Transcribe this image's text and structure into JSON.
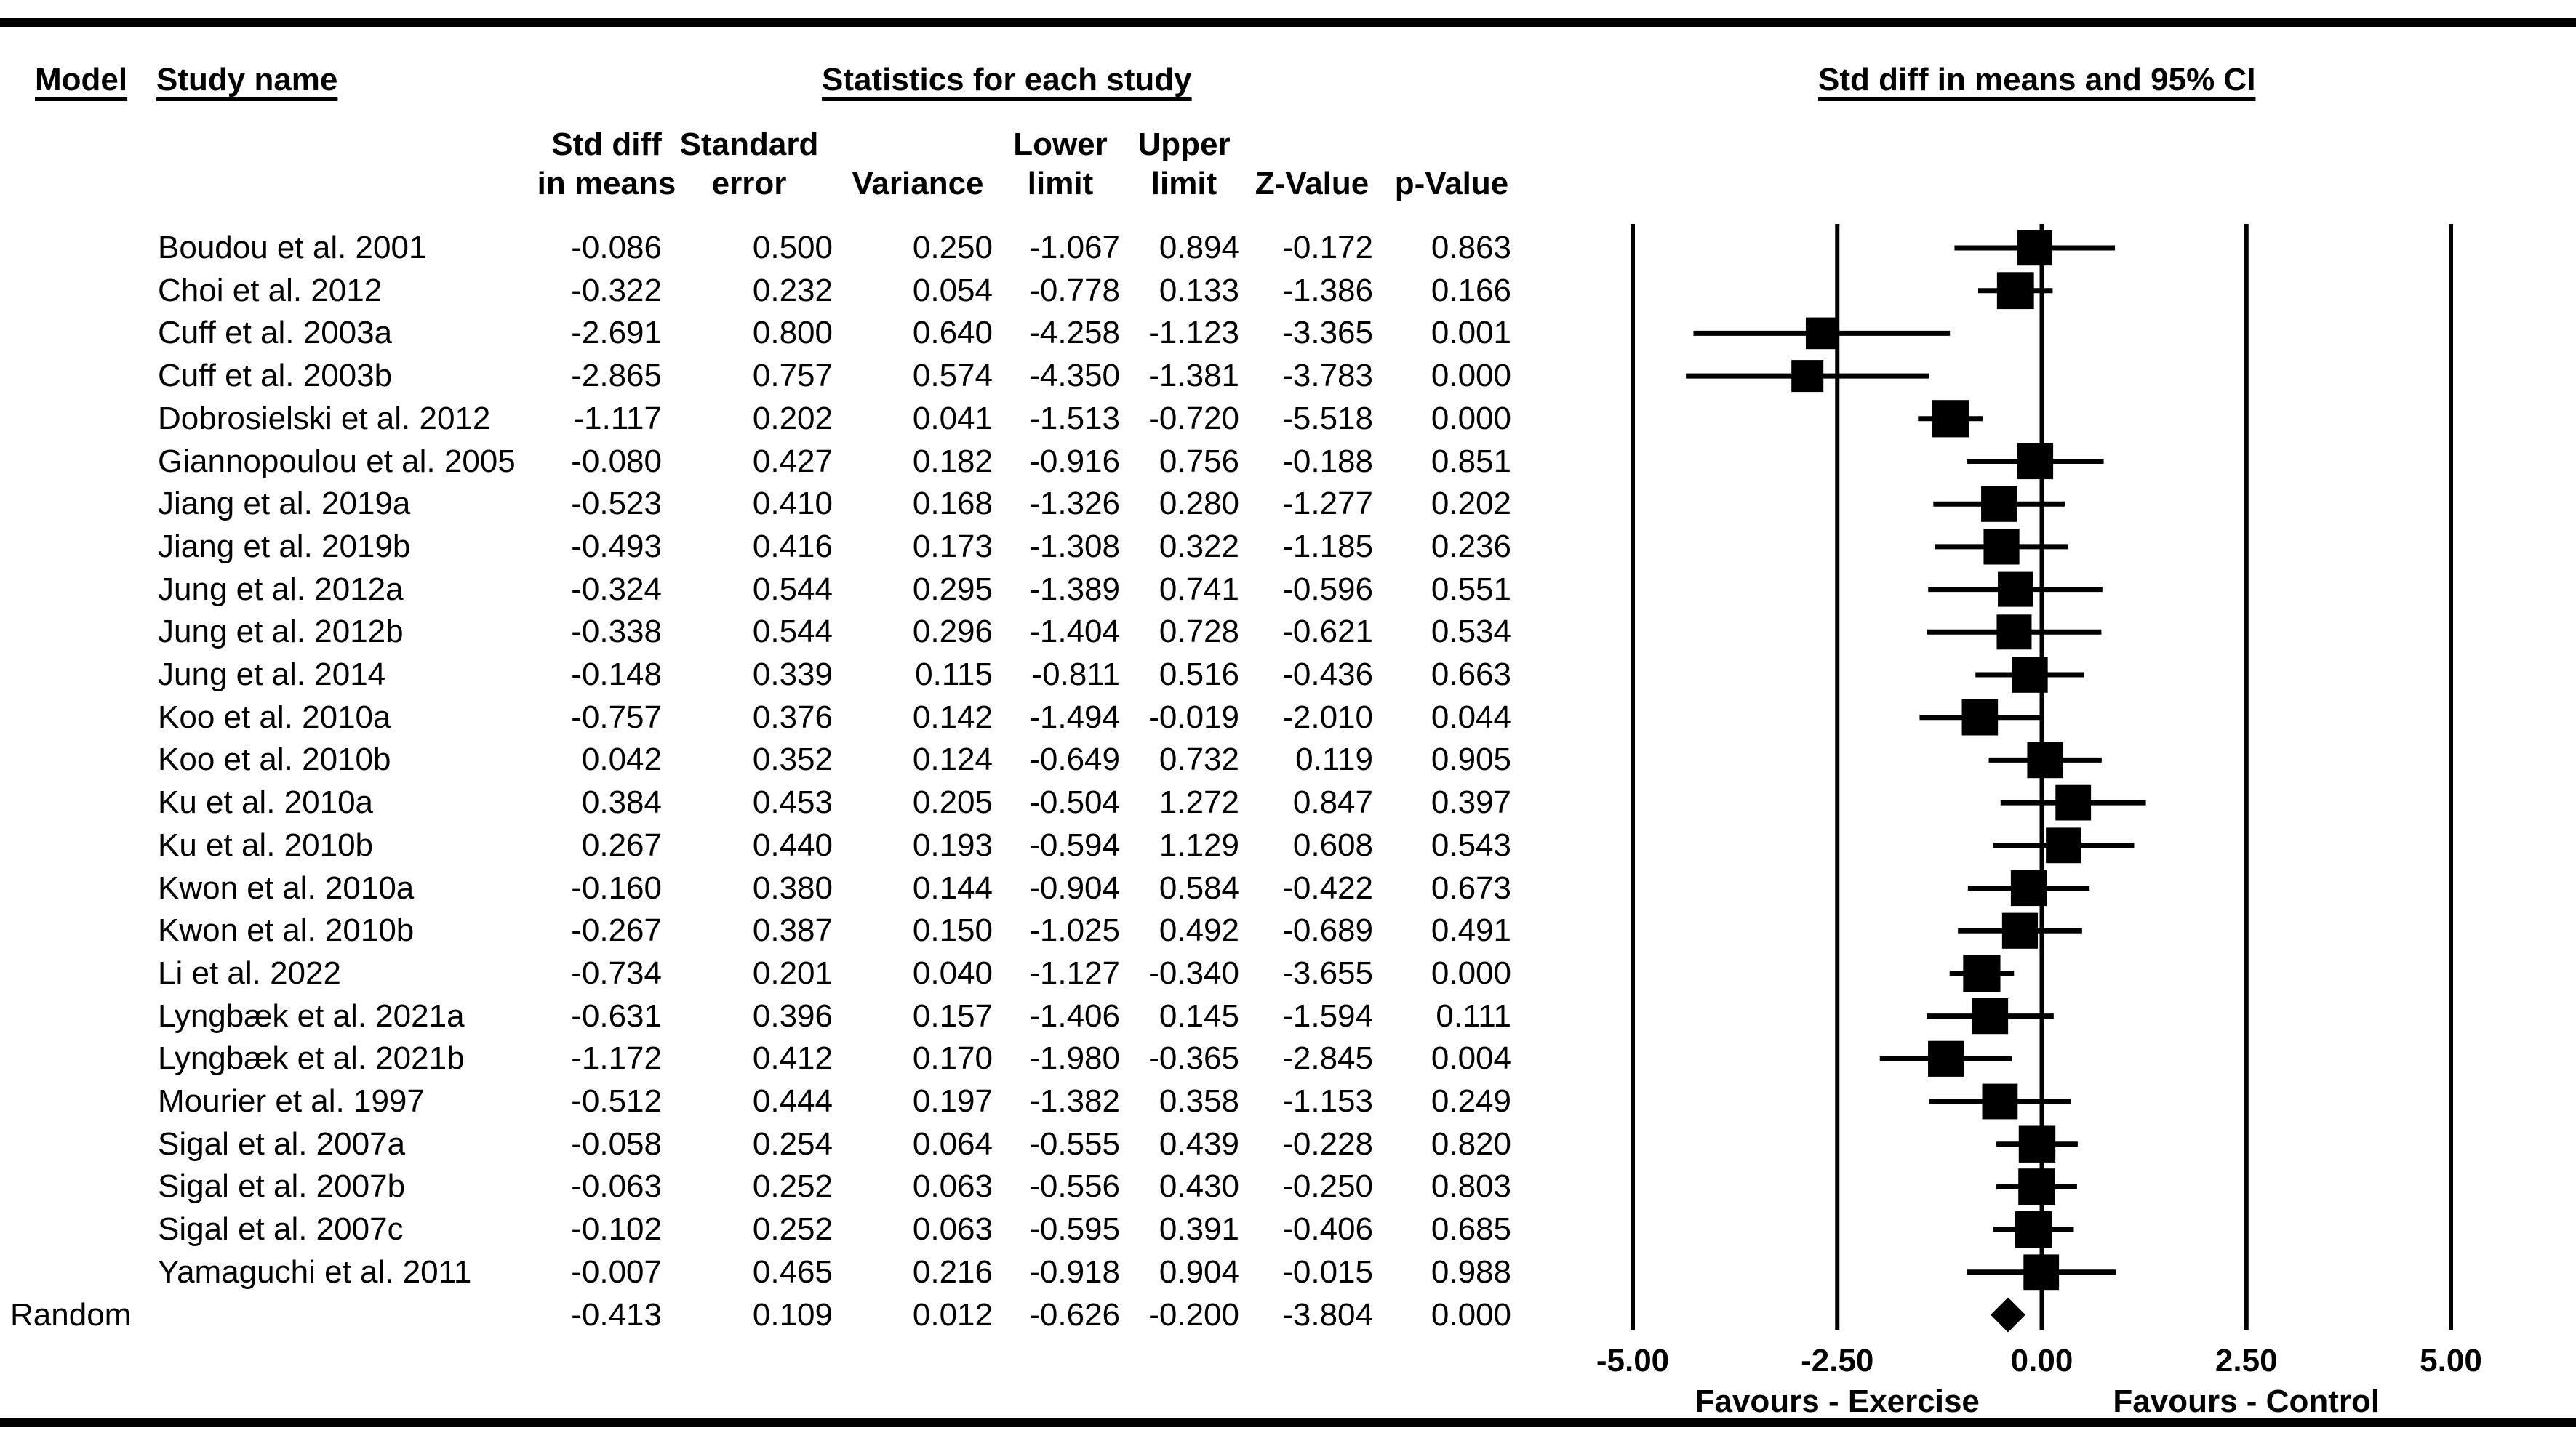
{
  "headers": {
    "model": "Model",
    "study_name": "Study name",
    "stats_group": "Statistics for each study",
    "plot_group": "Std diff in means and 95% CI"
  },
  "columns": [
    {
      "key": "std_diff",
      "line1": "Std diff",
      "line2": "in means"
    },
    {
      "key": "se",
      "line1": "Standard",
      "line2": "error"
    },
    {
      "key": "variance",
      "line1": "",
      "line2": "Variance"
    },
    {
      "key": "lower",
      "line1": "Lower",
      "line2": "limit"
    },
    {
      "key": "upper",
      "line1": "Upper",
      "line2": "limit"
    },
    {
      "key": "z",
      "line1": "",
      "line2": "Z-Value"
    },
    {
      "key": "p",
      "line1": "",
      "line2": "p-Value"
    }
  ],
  "studies": [
    {
      "name": "Boudou et al. 2001",
      "std_diff": "-0.086",
      "se": "0.500",
      "variance": "0.250",
      "lower": "-1.067",
      "upper": "0.894",
      "z": "-0.172",
      "p": "0.863"
    },
    {
      "name": "Choi et al. 2012",
      "std_diff": "-0.322",
      "se": "0.232",
      "variance": "0.054",
      "lower": "-0.778",
      "upper": "0.133",
      "z": "-1.386",
      "p": "0.166"
    },
    {
      "name": "Cuff et al. 2003a",
      "std_diff": "-2.691",
      "se": "0.800",
      "variance": "0.640",
      "lower": "-4.258",
      "upper": "-1.123",
      "z": "-3.365",
      "p": "0.001"
    },
    {
      "name": "Cuff et al. 2003b",
      "std_diff": "-2.865",
      "se": "0.757",
      "variance": "0.574",
      "lower": "-4.350",
      "upper": "-1.381",
      "z": "-3.783",
      "p": "0.000"
    },
    {
      "name": "Dobrosielski et al. 2012",
      "std_diff": "-1.117",
      "se": "0.202",
      "variance": "0.041",
      "lower": "-1.513",
      "upper": "-0.720",
      "z": "-5.518",
      "p": "0.000"
    },
    {
      "name": "Giannopoulou et al. 2005",
      "std_diff": "-0.080",
      "se": "0.427",
      "variance": "0.182",
      "lower": "-0.916",
      "upper": "0.756",
      "z": "-0.188",
      "p": "0.851"
    },
    {
      "name": "Jiang et al. 2019a",
      "std_diff": "-0.523",
      "se": "0.410",
      "variance": "0.168",
      "lower": "-1.326",
      "upper": "0.280",
      "z": "-1.277",
      "p": "0.202"
    },
    {
      "name": "Jiang et al. 2019b",
      "std_diff": "-0.493",
      "se": "0.416",
      "variance": "0.173",
      "lower": "-1.308",
      "upper": "0.322",
      "z": "-1.185",
      "p": "0.236"
    },
    {
      "name": "Jung et al. 2012a",
      "std_diff": "-0.324",
      "se": "0.544",
      "variance": "0.295",
      "lower": "-1.389",
      "upper": "0.741",
      "z": "-0.596",
      "p": "0.551"
    },
    {
      "name": "Jung et al. 2012b",
      "std_diff": "-0.338",
      "se": "0.544",
      "variance": "0.296",
      "lower": "-1.404",
      "upper": "0.728",
      "z": "-0.621",
      "p": "0.534"
    },
    {
      "name": "Jung et al. 2014",
      "std_diff": "-0.148",
      "se": "0.339",
      "variance": "0.115",
      "lower": "-0.811",
      "upper": "0.516",
      "z": "-0.436",
      "p": "0.663"
    },
    {
      "name": "Koo et al. 2010a",
      "std_diff": "-0.757",
      "se": "0.376",
      "variance": "0.142",
      "lower": "-1.494",
      "upper": "-0.019",
      "z": "-2.010",
      "p": "0.044"
    },
    {
      "name": "Koo et al. 2010b",
      "std_diff": "0.042",
      "se": "0.352",
      "variance": "0.124",
      "lower": "-0.649",
      "upper": "0.732",
      "z": "0.119",
      "p": "0.905"
    },
    {
      "name": "Ku et al. 2010a",
      "std_diff": "0.384",
      "se": "0.453",
      "variance": "0.205",
      "lower": "-0.504",
      "upper": "1.272",
      "z": "0.847",
      "p": "0.397"
    },
    {
      "name": "Ku et al. 2010b",
      "std_diff": "0.267",
      "se": "0.440",
      "variance": "0.193",
      "lower": "-0.594",
      "upper": "1.129",
      "z": "0.608",
      "p": "0.543"
    },
    {
      "name": "Kwon et al. 2010a",
      "std_diff": "-0.160",
      "se": "0.380",
      "variance": "0.144",
      "lower": "-0.904",
      "upper": "0.584",
      "z": "-0.422",
      "p": "0.673"
    },
    {
      "name": "Kwon et al. 2010b",
      "std_diff": "-0.267",
      "se": "0.387",
      "variance": "0.150",
      "lower": "-1.025",
      "upper": "0.492",
      "z": "-0.689",
      "p": "0.491"
    },
    {
      "name": "Li et al. 2022",
      "std_diff": "-0.734",
      "se": "0.201",
      "variance": "0.040",
      "lower": "-1.127",
      "upper": "-0.340",
      "z": "-3.655",
      "p": "0.000"
    },
    {
      "name": "Lyngbæk et al. 2021a",
      "std_diff": "-0.631",
      "se": "0.396",
      "variance": "0.157",
      "lower": "-1.406",
      "upper": "0.145",
      "z": "-1.594",
      "p": "0.111"
    },
    {
      "name": "Lyngbæk et al. 2021b",
      "std_diff": "-1.172",
      "se": "0.412",
      "variance": "0.170",
      "lower": "-1.980",
      "upper": "-0.365",
      "z": "-2.845",
      "p": "0.004"
    },
    {
      "name": "Mourier et al. 1997",
      "std_diff": "-0.512",
      "se": "0.444",
      "variance": "0.197",
      "lower": "-1.382",
      "upper": "0.358",
      "z": "-1.153",
      "p": "0.249"
    },
    {
      "name": "Sigal et al. 2007a",
      "std_diff": "-0.058",
      "se": "0.254",
      "variance": "0.064",
      "lower": "-0.555",
      "upper": "0.439",
      "z": "-0.228",
      "p": "0.820"
    },
    {
      "name": "Sigal et al. 2007b",
      "std_diff": "-0.063",
      "se": "0.252",
      "variance": "0.063",
      "lower": "-0.556",
      "upper": "0.430",
      "z": "-0.250",
      "p": "0.803"
    },
    {
      "name": "Sigal et al. 2007c",
      "std_diff": "-0.102",
      "se": "0.252",
      "variance": "0.063",
      "lower": "-0.595",
      "upper": "0.391",
      "z": "-0.406",
      "p": "0.685"
    },
    {
      "name": "Yamaguchi et al. 2011",
      "std_diff": "-0.007",
      "se": "0.465",
      "variance": "0.216",
      "lower": "-0.918",
      "upper": "0.904",
      "z": "-0.015",
      "p": "0.988"
    }
  ],
  "summary": {
    "model": "Random",
    "name": "",
    "std_diff": "-0.413",
    "se": "0.109",
    "variance": "0.012",
    "lower": "-0.626",
    "upper": "-0.200",
    "z": "-3.804",
    "p": "0.000"
  },
  "chart_data": {
    "type": "forest",
    "title": "Std diff in means and 95% CI",
    "xlim": [
      -5,
      5
    ],
    "ticks": [
      -5,
      -2.5,
      0,
      2.5,
      5
    ],
    "tick_labels": [
      "-5.00",
      "-2.50",
      "0.00",
      "2.50",
      "5.00"
    ],
    "left_label": "Favours - Exercise",
    "right_label": "Favours - Control",
    "points": [
      {
        "label": "Boudou et al. 2001",
        "est": -0.086,
        "lower": -1.067,
        "upper": 0.894,
        "weight": 1.21
      },
      {
        "label": "Choi et al. 2012",
        "est": -0.322,
        "lower": -0.778,
        "upper": 0.133,
        "weight": 1.27
      },
      {
        "label": "Cuff et al. 2003a",
        "est": -2.691,
        "lower": -4.258,
        "upper": -1.123,
        "weight": 1.09
      },
      {
        "label": "Cuff et al. 2003b",
        "est": -2.865,
        "lower": -4.35,
        "upper": -1.381,
        "weight": 1.1
      },
      {
        "label": "Dobrosielski et al. 2012",
        "est": -1.117,
        "lower": -1.513,
        "upper": -0.72,
        "weight": 1.28
      },
      {
        "label": "Giannopoulou et al. 2005",
        "est": -0.08,
        "lower": -0.916,
        "upper": 0.756,
        "weight": 1.23
      },
      {
        "label": "Jiang et al. 2019a",
        "est": -0.523,
        "lower": -1.326,
        "upper": 0.28,
        "weight": 1.23
      },
      {
        "label": "Jiang et al. 2019b",
        "est": -0.493,
        "lower": -1.308,
        "upper": 0.322,
        "weight": 1.23
      },
      {
        "label": "Jung et al. 2012a",
        "est": -0.324,
        "lower": -1.389,
        "upper": 0.741,
        "weight": 1.2
      },
      {
        "label": "Jung et al. 2012b",
        "est": -0.338,
        "lower": -1.404,
        "upper": 0.728,
        "weight": 1.2
      },
      {
        "label": "Jung et al. 2014",
        "est": -0.148,
        "lower": -0.811,
        "upper": 0.516,
        "weight": 1.24
      },
      {
        "label": "Koo et al. 2010a",
        "est": -0.757,
        "lower": -1.494,
        "upper": -0.019,
        "weight": 1.24
      },
      {
        "label": "Koo et al. 2010b",
        "est": 0.042,
        "lower": -0.649,
        "upper": 0.732,
        "weight": 1.24
      },
      {
        "label": "Ku et al. 2010a",
        "est": 0.384,
        "lower": -0.504,
        "upper": 1.272,
        "weight": 1.22
      },
      {
        "label": "Ku et al. 2010b",
        "est": 0.267,
        "lower": -0.594,
        "upper": 1.129,
        "weight": 1.22
      },
      {
        "label": "Kwon et al. 2010a",
        "est": -0.16,
        "lower": -0.904,
        "upper": 0.584,
        "weight": 1.23
      },
      {
        "label": "Kwon et al. 2010b",
        "est": -0.267,
        "lower": -1.025,
        "upper": 0.492,
        "weight": 1.23
      },
      {
        "label": "Li et al. 2022",
        "est": -0.734,
        "lower": -1.127,
        "upper": -0.34,
        "weight": 1.28
      },
      {
        "label": "Lyngbæk et al. 2021a",
        "est": -0.631,
        "lower": -1.406,
        "upper": 0.145,
        "weight": 1.23
      },
      {
        "label": "Lyngbæk et al. 2021b",
        "est": -1.172,
        "lower": -1.98,
        "upper": -0.365,
        "weight": 1.23
      },
      {
        "label": "Mourier et al. 1997",
        "est": -0.512,
        "lower": -1.382,
        "upper": 0.358,
        "weight": 1.22
      },
      {
        "label": "Sigal et al. 2007a",
        "est": -0.058,
        "lower": -0.555,
        "upper": 0.439,
        "weight": 1.26
      },
      {
        "label": "Sigal et al. 2007b",
        "est": -0.063,
        "lower": -0.556,
        "upper": 0.43,
        "weight": 1.26
      },
      {
        "label": "Sigal et al. 2007c",
        "est": -0.102,
        "lower": -0.595,
        "upper": 0.391,
        "weight": 1.26
      },
      {
        "label": "Yamaguchi et al. 2011",
        "est": -0.007,
        "lower": -0.918,
        "upper": 0.904,
        "weight": 1.22
      }
    ],
    "summary": {
      "label": "Random",
      "est": -0.413,
      "lower": -0.626,
      "upper": -0.2
    }
  }
}
